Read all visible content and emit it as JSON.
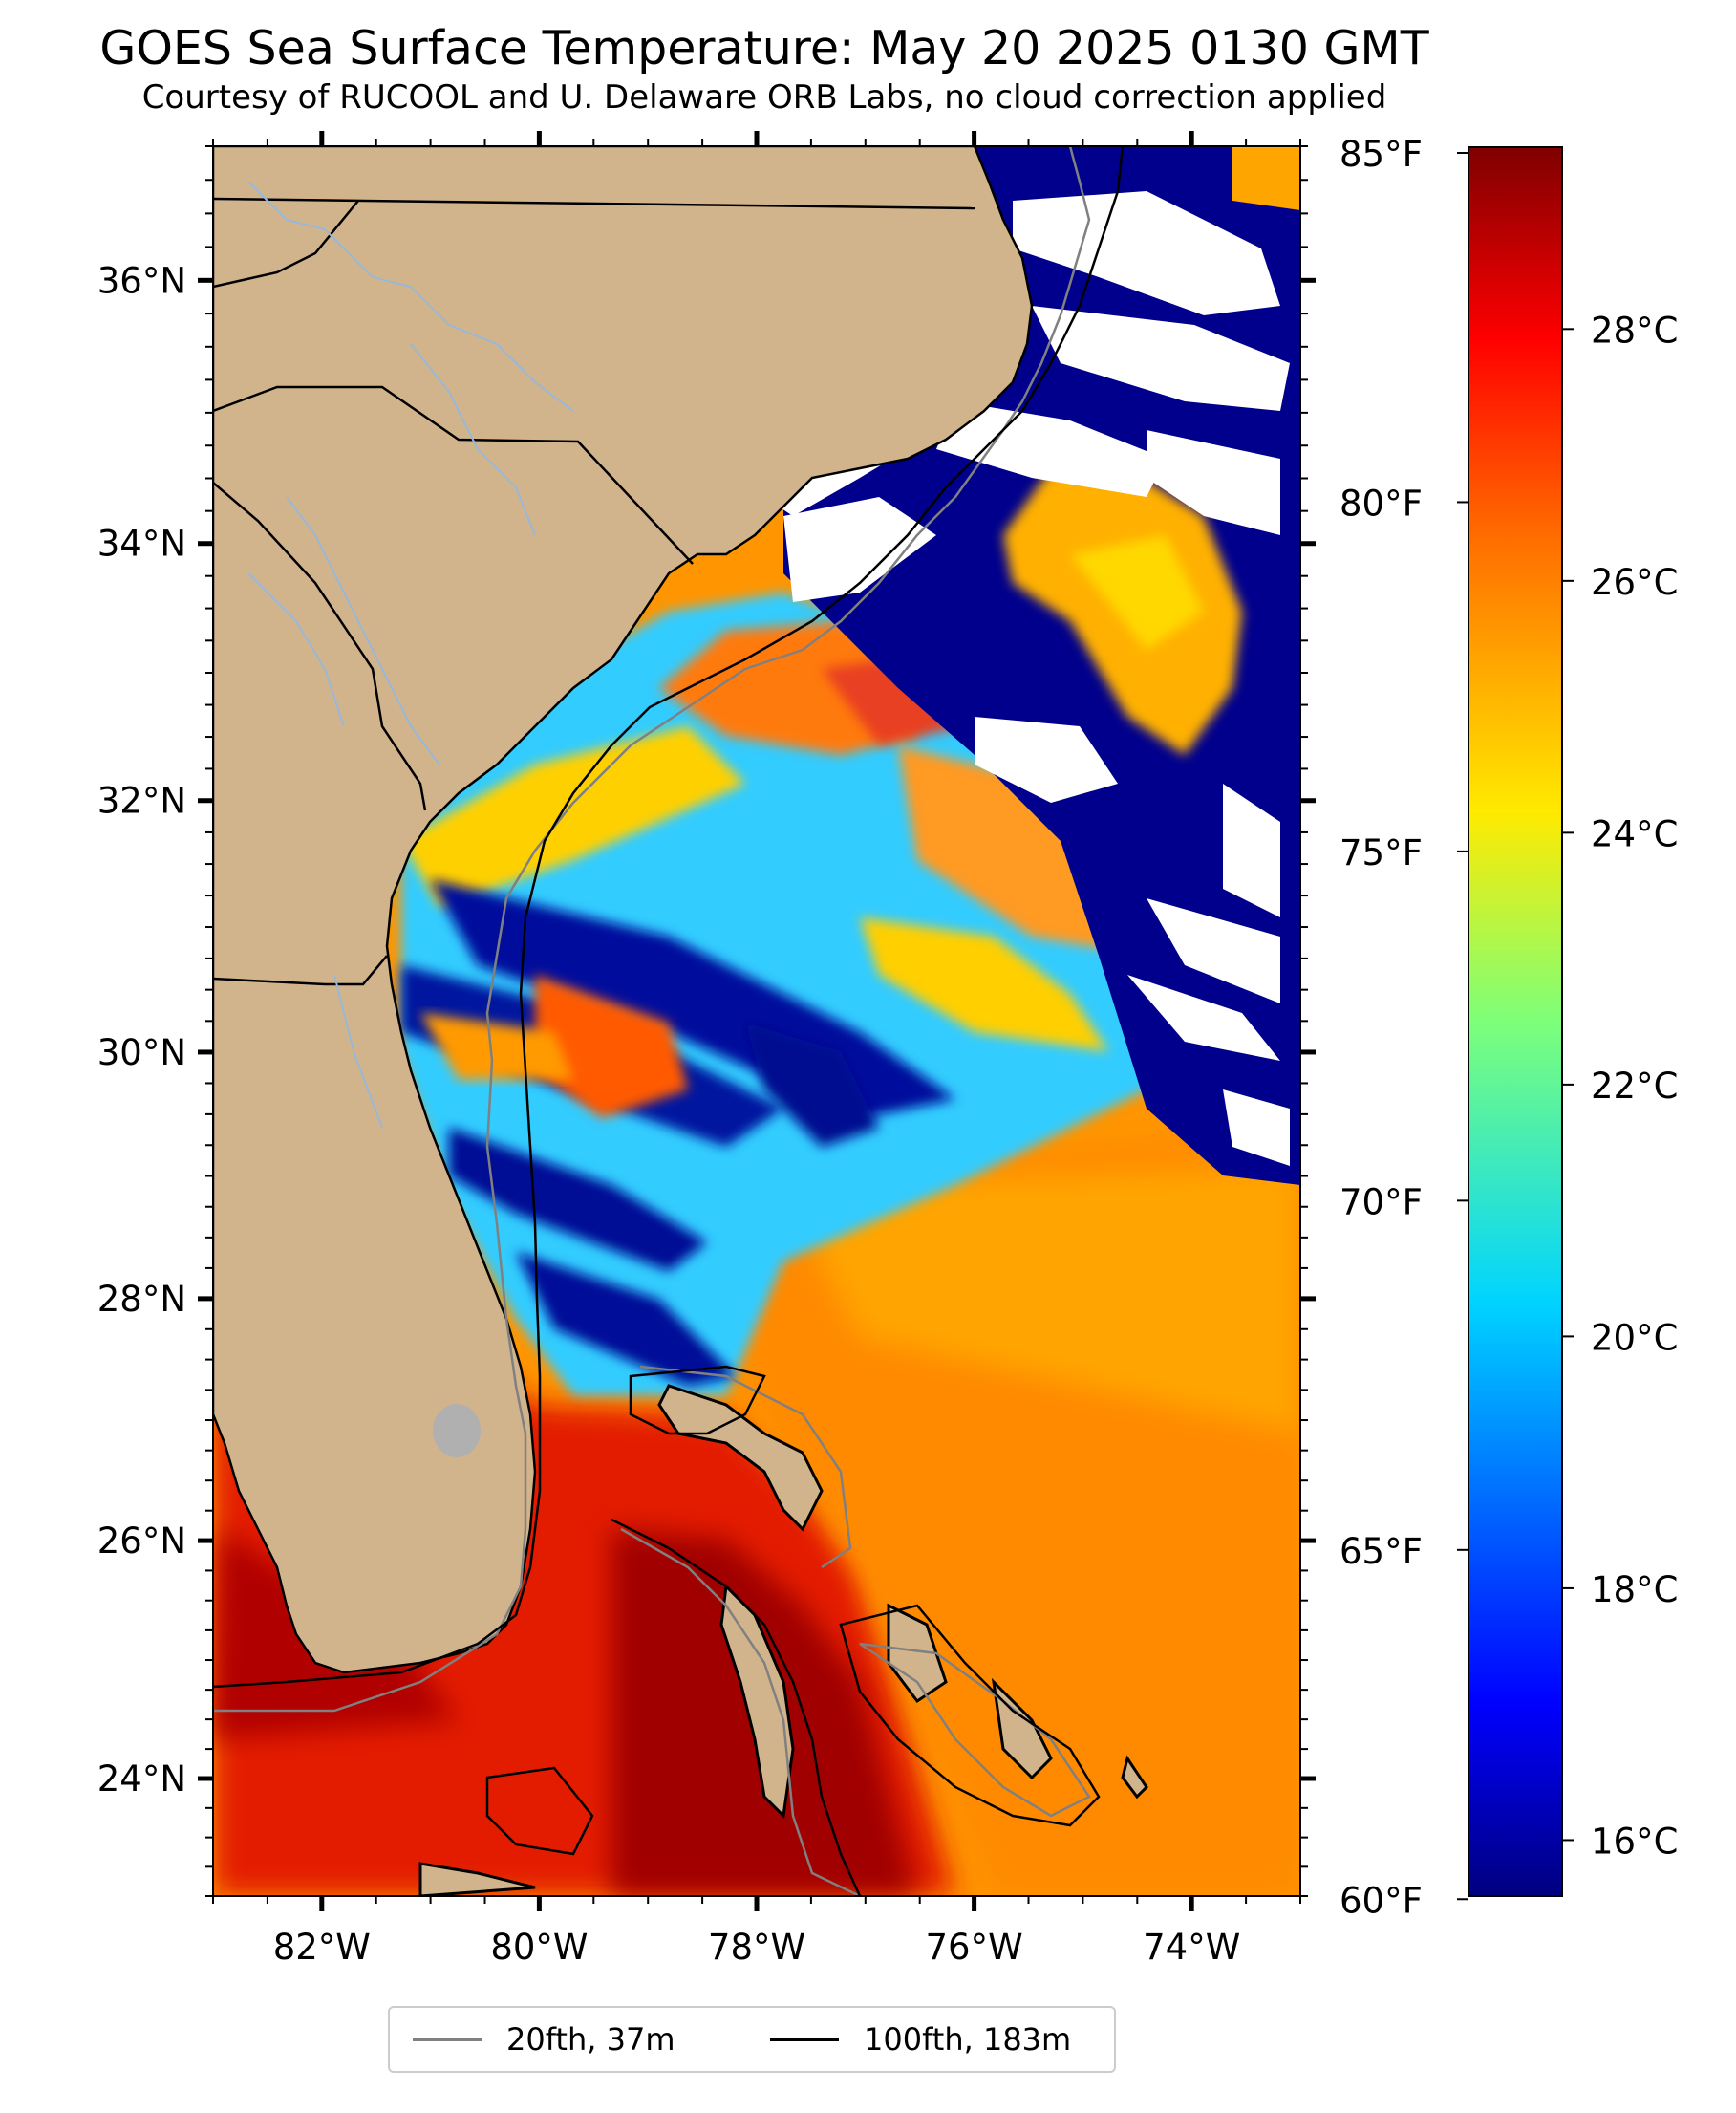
{
  "title": "GOES Sea Surface Temperature: May 20 2025 0130 GMT",
  "subtitle": "Courtesy of RUCOOL and U. Delaware ORB Labs, no cloud correction applied",
  "map": {
    "lon_range": [
      -83.0,
      -73.0
    ],
    "lat_range": [
      23.0,
      37.0
    ],
    "lon_ticks": [
      {
        "value": -82,
        "label": "82°W"
      },
      {
        "value": -80,
        "label": "80°W"
      },
      {
        "value": -78,
        "label": "78°W"
      },
      {
        "value": -76,
        "label": "76°W"
      },
      {
        "value": -74,
        "label": "74°W"
      }
    ],
    "lat_ticks": [
      {
        "value": 24,
        "label": "24°N"
      },
      {
        "value": 26,
        "label": "26°N"
      },
      {
        "value": 28,
        "label": "28°N"
      },
      {
        "value": 30,
        "label": "30°N"
      },
      {
        "value": 32,
        "label": "32°N"
      },
      {
        "value": 34,
        "label": "34°N"
      },
      {
        "value": 36,
        "label": "36°N"
      }
    ],
    "land_color": "#d2b48c",
    "river_color": "#99b8d8",
    "no_data_color": "#ffffff"
  },
  "colorbar": {
    "colormap": "jet",
    "fahrenheit_labels": [
      "85°F",
      "80°F",
      "75°F",
      "70°F",
      "65°F",
      "60°F"
    ],
    "celsius_labels": [
      "28°C",
      "26°C",
      "24°C",
      "22°C",
      "20°C",
      "18°C",
      "16°C"
    ]
  },
  "legend": {
    "items": [
      {
        "label": "20fth, 37m",
        "color": "#808080"
      },
      {
        "label": "100fth, 183m",
        "color": "#000000"
      }
    ]
  }
}
